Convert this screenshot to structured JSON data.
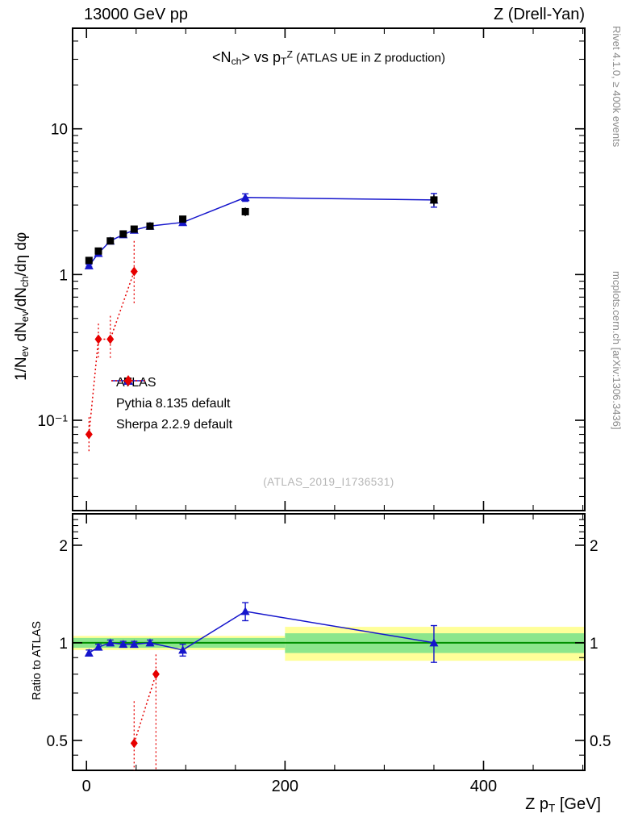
{
  "header": {
    "left": "13000 GeV pp",
    "right": "Z (Drell-Yan)"
  },
  "plot_title": {
    "main_html": "&lt;N<sub>ch</sub>&gt; vs p<sub>T</sub><sup>Z</sup>",
    "paren": " (ATLAS UE in Z production)"
  },
  "watermark": "(ATLAS_2019_I1736531)",
  "side_notes": {
    "top_right": "Rivet 4.1.0, ≥ 400k events",
    "bottom_right": "mcplots.cern.ch [arXiv:1306.3436]"
  },
  "axes": {
    "ylabel_top_html": "1/N<sub>ev</sub> dN<sub>ev</sub>/dN<sub>ch</sub>/dη dφ",
    "ylabel_ratio": "Ratio to ATLAS",
    "xlabel_html": "Z p<sub>T</sub> [GeV]"
  },
  "chart_data": {
    "type": "scatter",
    "xlim": [
      -14,
      502
    ],
    "xticks": [
      {
        "v": 0,
        "label": "0"
      },
      {
        "v": 200,
        "label": "200"
      },
      {
        "v": 400,
        "label": "400"
      }
    ],
    "xminor_step": 50,
    "top": {
      "ylog": true,
      "ylim": [
        0.024,
        49
      ],
      "yticks": [
        {
          "v": 10,
          "label": "10"
        },
        {
          "v": 1,
          "label": "1"
        },
        {
          "v": 0.1,
          "label": "10⁻¹"
        }
      ]
    },
    "ratio": {
      "ylog": true,
      "ylim": [
        0.404,
        2.5
      ],
      "yticks": [
        {
          "v": 2,
          "label": "2"
        },
        {
          "v": 1,
          "label": "1"
        },
        {
          "v": 0.5,
          "label": "0.5"
        }
      ],
      "yminor": [
        0.45,
        0.6,
        0.7,
        0.8,
        0.9,
        2.1,
        2.2,
        2.3,
        2.4
      ]
    },
    "bands": {
      "yellow_color": "#ffff99",
      "green_color": "#8ce68c",
      "line_color": "#009000",
      "line_y": 1,
      "segments": [
        {
          "x0": -14,
          "x1": 200,
          "yellow": [
            0.95,
            1.05
          ],
          "green": [
            0.965,
            1.035
          ]
        },
        {
          "x0": 200,
          "x1": 502,
          "yellow": [
            0.88,
            1.12
          ],
          "green": [
            0.93,
            1.07
          ]
        }
      ]
    },
    "series": [
      {
        "name": "ATLAS",
        "color": "#000000",
        "marker": "square",
        "line": "none",
        "x": [
          2.5,
          12,
          24,
          37,
          48,
          64,
          97,
          160,
          350
        ],
        "y": [
          1.25,
          1.45,
          1.7,
          1.9,
          2.05,
          2.15,
          2.4,
          2.7,
          3.25
        ],
        "yerr": [
          0.05,
          0.05,
          0.05,
          0.06,
          0.06,
          0.07,
          0.09,
          0.18,
          0.28
        ]
      },
      {
        "name": "Pythia 8.135 default",
        "color": "#1515cc",
        "marker": "triangle",
        "line": "solid",
        "x": [
          2.5,
          12,
          24,
          37,
          48,
          64,
          97,
          160,
          350
        ],
        "y": [
          1.15,
          1.4,
          1.7,
          1.88,
          2.02,
          2.15,
          2.28,
          3.38,
          3.25
        ],
        "yerr": [
          0.02,
          0.02,
          0.02,
          0.02,
          0.02,
          0.03,
          0.05,
          0.2,
          0.35
        ],
        "ratio": [
          0.93,
          0.97,
          1.0,
          0.99,
          0.99,
          1.0,
          0.95,
          1.25,
          1.0
        ],
        "ratio_err": [
          0.02,
          0.02,
          0.02,
          0.02,
          0.02,
          0.02,
          0.04,
          0.08,
          0.13
        ]
      },
      {
        "name": "Sherpa 2.2.9 default",
        "color": "#e60000",
        "marker": "diamond",
        "line": "dotted",
        "x": [
          2.5,
          12,
          24,
          48
        ],
        "y": [
          0.08,
          0.36,
          0.36,
          1.05
        ],
        "ylo": [
          0.06,
          0.27,
          0.26,
          0.62
        ],
        "yhi": [
          0.105,
          0.46,
          0.52,
          1.7
        ],
        "ratio_x": [
          48,
          70
        ],
        "ratio": [
          0.49,
          0.8
        ],
        "ratio_lo": [
          0.404,
          0.404
        ],
        "ratio_hi": [
          0.66,
          0.92
        ]
      }
    ]
  }
}
